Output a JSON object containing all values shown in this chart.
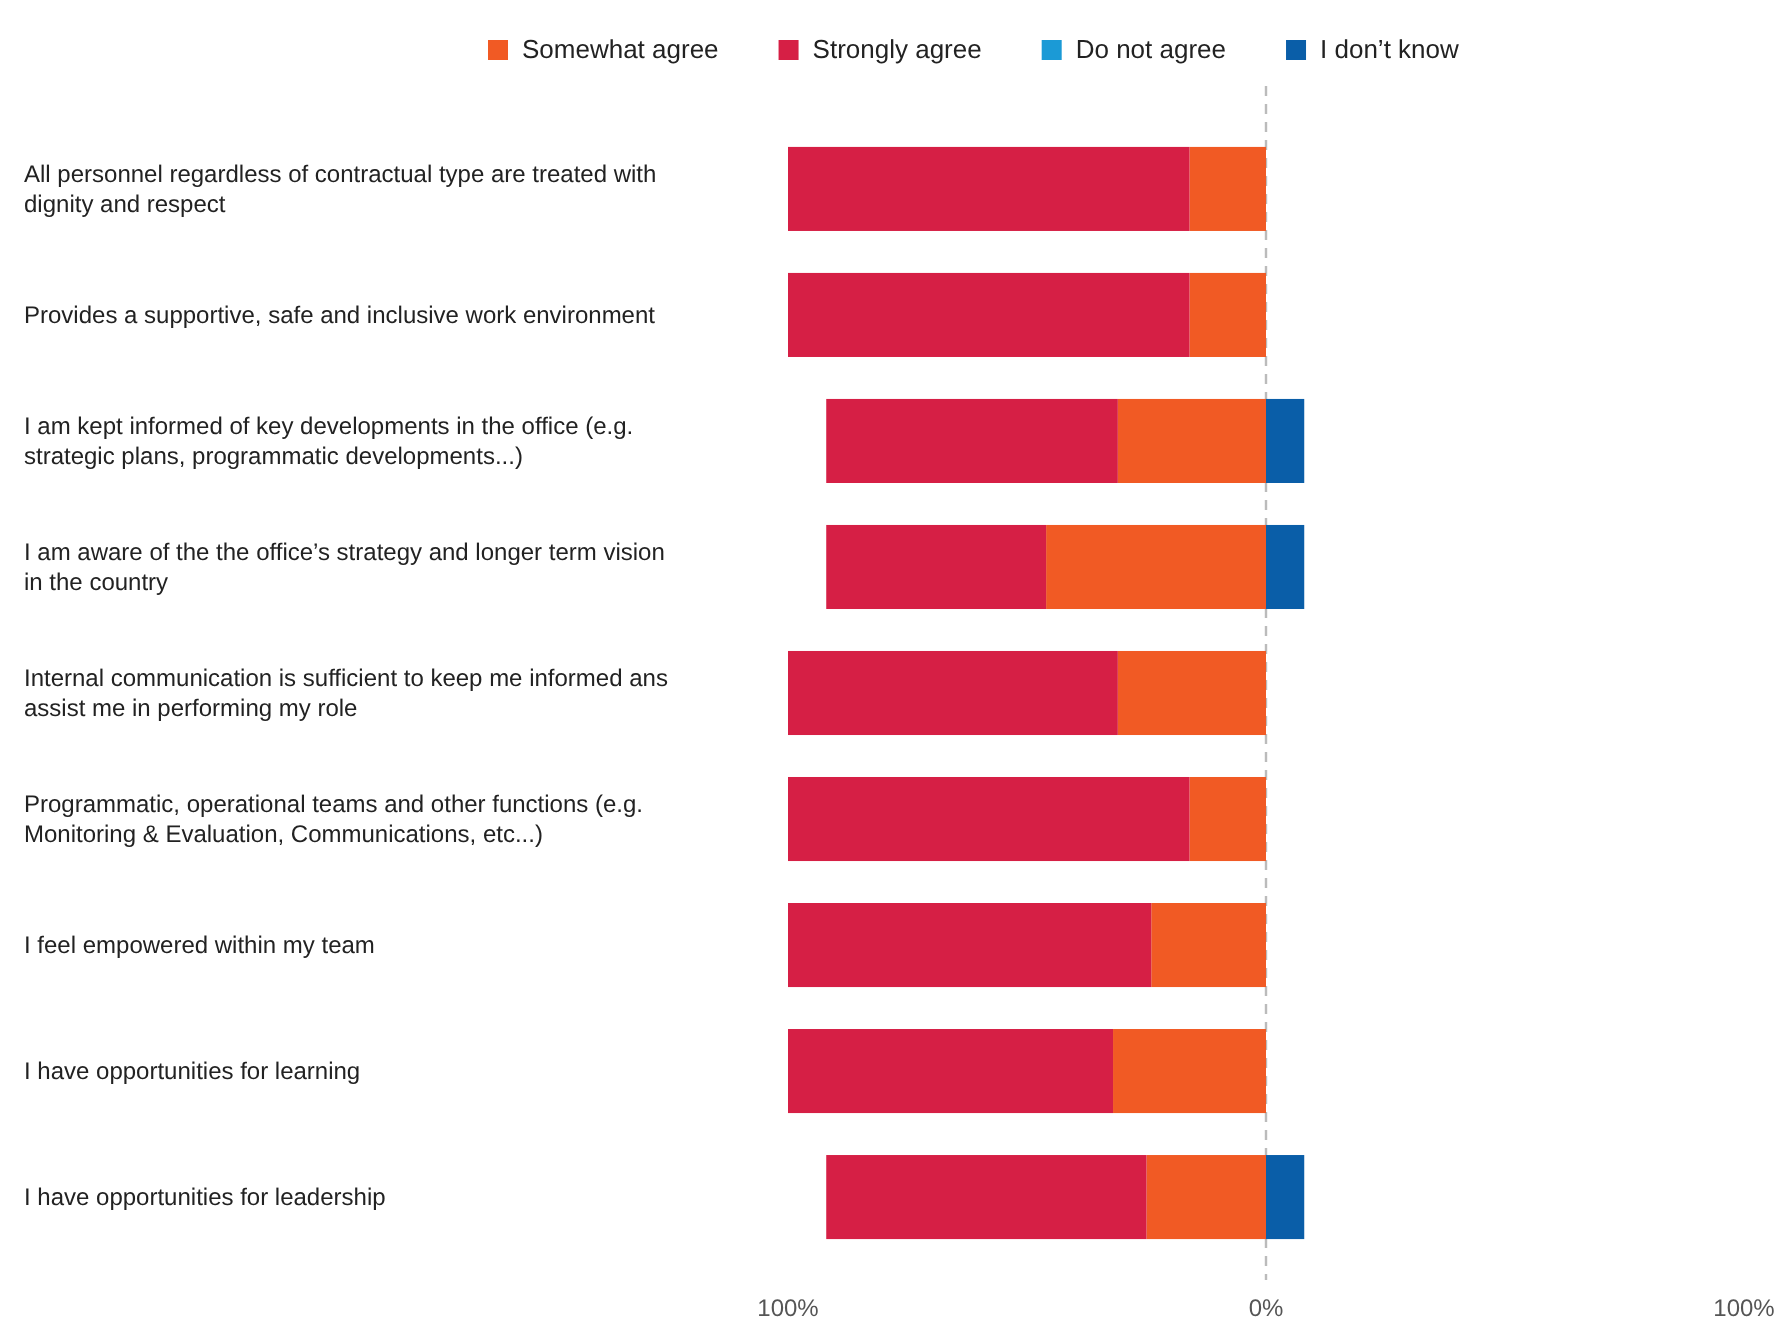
{
  "chart_data": {
    "type": "bar",
    "orientation": "horizontal",
    "stacked": true,
    "categories": [
      "All personnel regardless of contractual type are treated with dignity and respect",
      "Provides a supportive, safe and inclusive work environment",
      "I am kept informed of key developments in the office (e.g. strategic plans, programmatic developments...)",
      "I am aware of the the office’s strategy and longer term vision in the country",
      "Internal communication is sufficient to keep me informed ans assist me in performing my role",
      "Programmatic, operational teams and other functions (e.g. Monitoring & Evaluation, Communications, etc...)",
      "I feel empowered within my team",
      "I have opportunities for learning",
      "I have opportunities for leadership"
    ],
    "series": [
      {
        "name": "Somewhat agree",
        "color": "#f15a24",
        "values": [
          -16,
          -16,
          -31,
          -46,
          -31,
          -16,
          -24,
          -32,
          -25
        ]
      },
      {
        "name": "Strongly agree",
        "color": "#d61f45",
        "values": [
          -84,
          -84,
          -61,
          -46,
          -69,
          -84,
          -76,
          -68,
          -67
        ]
      },
      {
        "name": "Do not agree",
        "color": "#1b9ad6",
        "values": [
          0,
          0,
          0,
          0,
          0,
          0,
          0,
          0,
          0
        ]
      },
      {
        "name": "I don’t know",
        "color": "#0a5ea8",
        "values": [
          0,
          0,
          8,
          8,
          0,
          0,
          0,
          0,
          8
        ]
      }
    ],
    "xlim": [
      -100,
      100
    ],
    "xticks": [
      {
        "value": -100,
        "label": "100%"
      },
      {
        "value": 0,
        "label": "0%"
      },
      {
        "value": 100,
        "label": "100%"
      }
    ],
    "ref_lines": [
      {
        "axis": "x",
        "value": 0,
        "line_style": "dashed"
      }
    ],
    "legend": "top"
  }
}
